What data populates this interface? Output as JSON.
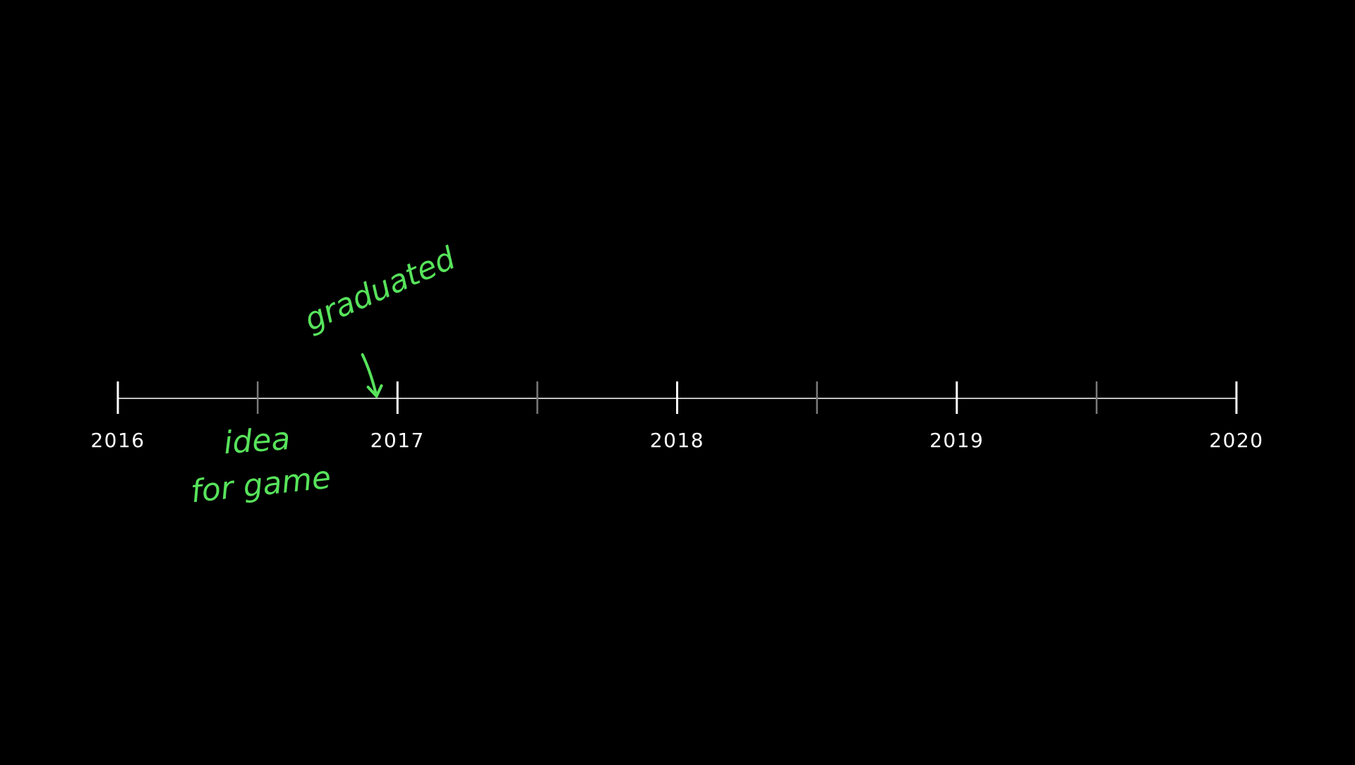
{
  "colors": {
    "background": "#000000",
    "axis": "#ffffff",
    "minor_tick": "#7a7a7a",
    "annotation": "#57e35b"
  },
  "timeline": {
    "start": 2016,
    "end": 2020,
    "years": [
      {
        "label": "2016",
        "value": 2016
      },
      {
        "label": "2017",
        "value": 2017
      },
      {
        "label": "2018",
        "value": 2018
      },
      {
        "label": "2019",
        "value": 2019
      },
      {
        "label": "2020",
        "value": 2020
      }
    ],
    "minor_ticks": [
      2016.5,
      2017.5,
      2018.5,
      2019.5
    ]
  },
  "annotations": {
    "graduated": {
      "text": "graduated",
      "date": 2016.92
    },
    "idea": {
      "line1": "idea",
      "line2": "for game",
      "date": 2016.5
    }
  }
}
